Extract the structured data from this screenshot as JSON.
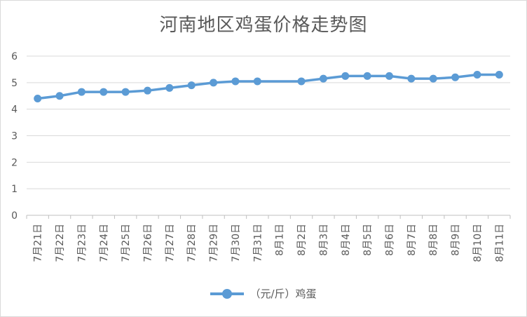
{
  "chart_data": {
    "type": "line",
    "title": "河南地区鸡蛋价格走势图",
    "xlabel": "",
    "ylabel": "",
    "ylim": [
      0,
      6
    ],
    "yticks": [
      0,
      1,
      2,
      3,
      4,
      5,
      6
    ],
    "grid": true,
    "legend_position": "bottom",
    "categories": [
      "7月21日",
      "7月22日",
      "7月23日",
      "7月24日",
      "7月25日",
      "7月26日",
      "7月27日",
      "7月28日",
      "7月29日",
      "7月30日",
      "7月31日",
      "8月1日",
      "8月2日",
      "8月3日",
      "8月4日",
      "8月5日",
      "8月6日",
      "8月7日",
      "8月8日",
      "8月9日",
      "8月10日",
      "8月11日"
    ],
    "series": [
      {
        "name": "（元/斤）鸡蛋",
        "color": "#5b9bd5",
        "values": [
          4.4,
          4.5,
          4.65,
          4.65,
          4.65,
          4.7,
          4.8,
          4.9,
          5.0,
          5.05,
          5.05,
          null,
          5.05,
          5.15,
          5.25,
          5.25,
          5.25,
          5.15,
          5.15,
          5.2,
          5.3,
          5.3
        ]
      }
    ]
  }
}
